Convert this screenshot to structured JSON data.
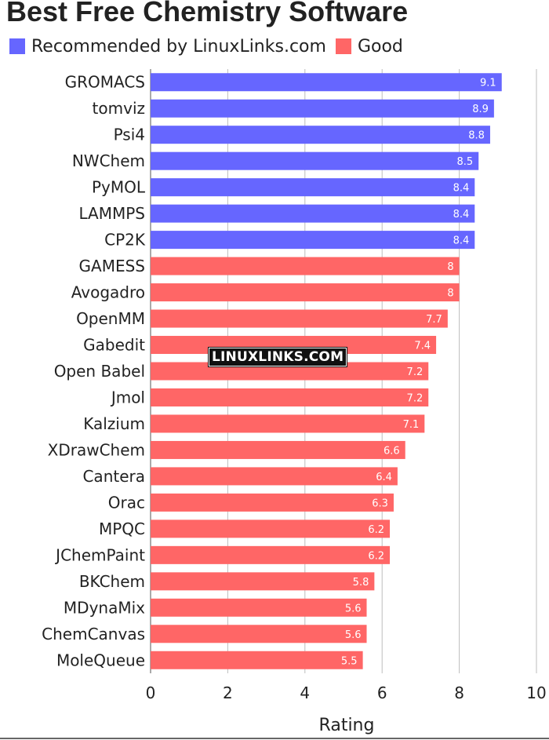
{
  "chart_data": {
    "type": "bar",
    "orientation": "horizontal",
    "title": "Best Free Chemistry Software",
    "xlabel": "Rating",
    "ylabel": "",
    "xlim": [
      0,
      10
    ],
    "xticks": [
      0,
      2,
      4,
      6,
      8,
      10
    ],
    "grid": true,
    "legend": {
      "placement": "top-left",
      "entries": [
        {
          "name": "Recommended by LinuxLinks.com",
          "color": "#6666ff"
        },
        {
          "name": "Good",
          "color": "#ff6666"
        }
      ]
    },
    "categories": [
      "GROMACS",
      "tomviz",
      "Psi4",
      "NWChem",
      "PyMOL",
      "LAMMPS",
      "CP2K",
      "GAMESS",
      "Avogadro",
      "OpenMM",
      "Gabedit",
      "Open Babel",
      "Jmol",
      "Kalzium",
      "XDrawChem",
      "Cantera",
      "Orac",
      "MPQC",
      "JChemPaint",
      "BKChem",
      "MDynaMix",
      "ChemCanvas",
      "MoleQueue"
    ],
    "values": [
      9.1,
      8.9,
      8.8,
      8.5,
      8.4,
      8.4,
      8.4,
      8,
      8,
      7.7,
      7.4,
      7.2,
      7.2,
      7.1,
      6.6,
      6.4,
      6.3,
      6.2,
      6.2,
      5.8,
      5.6,
      5.6,
      5.5
    ],
    "groups": [
      "Recommended by LinuxLinks.com",
      "Recommended by LinuxLinks.com",
      "Recommended by LinuxLinks.com",
      "Recommended by LinuxLinks.com",
      "Recommended by LinuxLinks.com",
      "Recommended by LinuxLinks.com",
      "Recommended by LinuxLinks.com",
      "Good",
      "Good",
      "Good",
      "Good",
      "Good",
      "Good",
      "Good",
      "Good",
      "Good",
      "Good",
      "Good",
      "Good",
      "Good",
      "Good",
      "Good",
      "Good"
    ],
    "watermark": "LINUXLINKS.COM"
  }
}
